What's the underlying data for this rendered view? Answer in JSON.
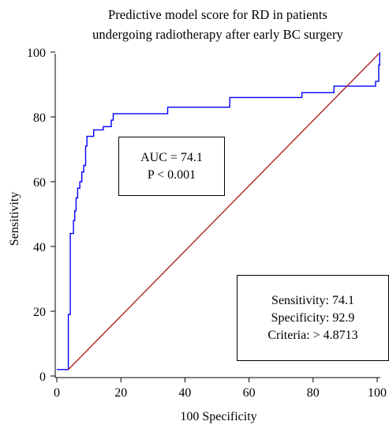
{
  "chart_data": {
    "type": "line",
    "title_lines": [
      "Predictive model score for RD in patients",
      "undergoing radiotherapy after early BC surgery"
    ],
    "xlabel": "100 Specificity",
    "ylabel": "Sensitivity",
    "xlim": [
      0,
      100
    ],
    "ylim": [
      0,
      100
    ],
    "x_ticks": [
      0,
      20,
      40,
      60,
      80,
      100
    ],
    "y_ticks": [
      0,
      20,
      40,
      60,
      80,
      100
    ],
    "grid": false,
    "series": [
      {
        "color": "#0000ff",
        "points": [
          [
            0,
            2
          ],
          [
            3.6,
            2
          ],
          [
            3.6,
            19
          ],
          [
            4.2,
            19
          ],
          [
            4.2,
            44
          ],
          [
            5.2,
            44
          ],
          [
            5.2,
            48
          ],
          [
            5.6,
            48
          ],
          [
            5.6,
            51
          ],
          [
            6.0,
            51
          ],
          [
            6.0,
            55
          ],
          [
            6.5,
            55
          ],
          [
            6.5,
            58
          ],
          [
            7.2,
            58
          ],
          [
            7.2,
            60
          ],
          [
            7.8,
            60
          ],
          [
            7.8,
            63
          ],
          [
            8.4,
            63
          ],
          [
            8.4,
            65
          ],
          [
            9.0,
            65
          ],
          [
            9.0,
            71
          ],
          [
            9.4,
            71
          ],
          [
            9.4,
            74
          ],
          [
            11.5,
            74
          ],
          [
            11.5,
            76
          ],
          [
            14.5,
            76
          ],
          [
            14.5,
            77
          ],
          [
            17.0,
            77
          ],
          [
            17.0,
            79
          ],
          [
            17.6,
            79
          ],
          [
            17.6,
            81
          ],
          [
            34.6,
            81
          ],
          [
            34.6,
            83
          ],
          [
            54.0,
            83
          ],
          [
            54.0,
            86
          ],
          [
            76.5,
            86
          ],
          [
            76.5,
            87.5
          ],
          [
            86.5,
            87.5
          ],
          [
            86.5,
            89.5
          ],
          [
            99.5,
            89.5
          ],
          [
            99.5,
            91
          ],
          [
            100.5,
            91
          ],
          [
            100.5,
            96
          ],
          [
            100.8,
            96
          ],
          [
            100.8,
            100
          ]
        ]
      },
      {
        "color": "#b22222",
        "points": [
          [
            3.6,
            2
          ],
          [
            100.5,
            99.5
          ]
        ]
      }
    ],
    "annotations": {
      "auc_box": {
        "lines": [
          "AUC = 74.1",
          "P < 0.001"
        ]
      },
      "stats_box": {
        "lines": [
          "Sensitivity: 74.1",
          "Specificity: 92.9",
          "Criteria: > 4.8713"
        ]
      }
    }
  }
}
